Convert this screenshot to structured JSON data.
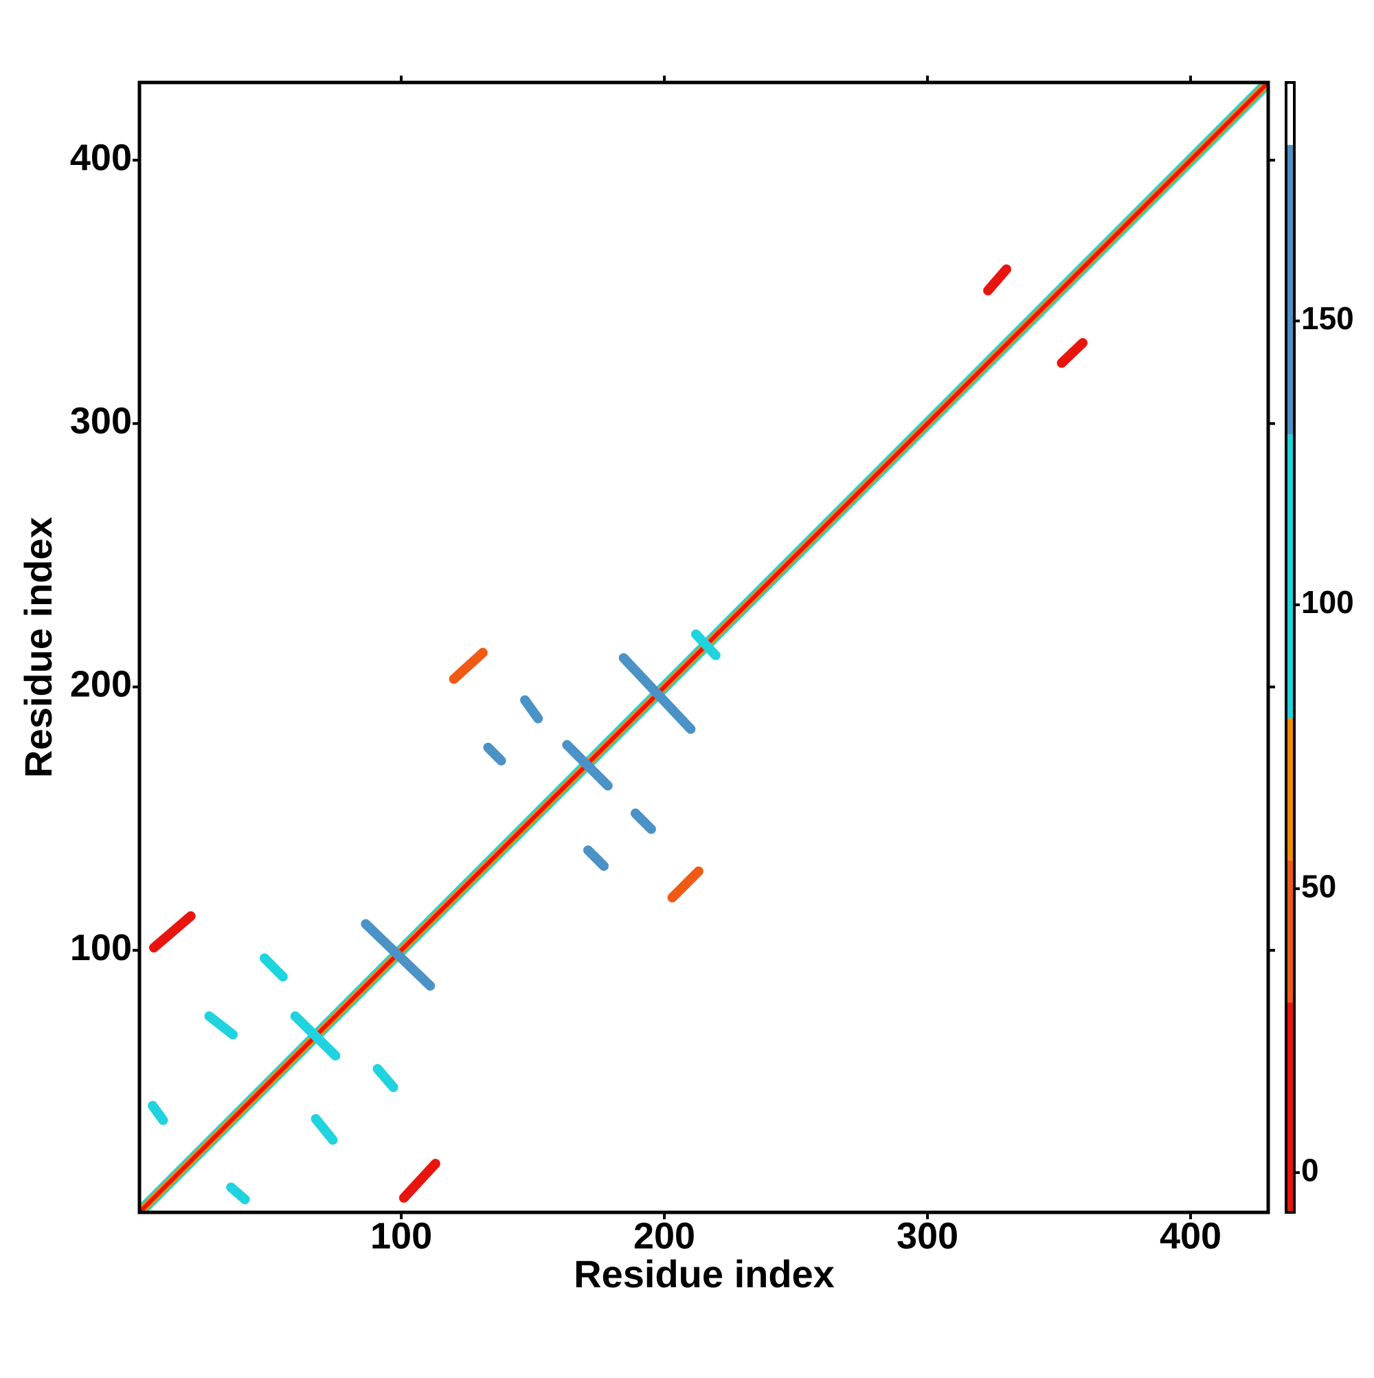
{
  "chart_data": {
    "type": "contact_map",
    "x_label": "Residue index",
    "y_label": "Residue index",
    "xlim": [
      0.5,
      429.5
    ],
    "ylim": [
      0.5,
      429.5
    ],
    "xticks": [
      100,
      200,
      300,
      400
    ],
    "yticks": [
      100,
      200,
      300,
      400
    ],
    "clim": [
      -7,
      192
    ],
    "cticks": [
      0,
      50,
      100,
      150
    ],
    "color_scale": [
      {
        "min": -7,
        "max": 30,
        "color": "#e8150e"
      },
      {
        "min": 30,
        "max": 55,
        "color": "#f05a14"
      },
      {
        "min": 55,
        "max": 80,
        "color": "#f08c00"
      },
      {
        "min": 80,
        "max": 130,
        "color": "#1fd3df"
      },
      {
        "min": 130,
        "max": 181,
        "color": "#4b92c6"
      },
      {
        "min": 181,
        "max": 192,
        "color": "#ffffff"
      }
    ],
    "contacts": [
      {
        "x": [
          1,
          429
        ],
        "y": [
          3,
          431
        ],
        "value": 100
      },
      {
        "x": [
          3,
          431
        ],
        "y": [
          1,
          429
        ],
        "value": 100
      },
      {
        "x": [
          1,
          429
        ],
        "y": [
          2,
          430
        ],
        "value": 60
      },
      {
        "x": [
          2,
          430
        ],
        "y": [
          1,
          429
        ],
        "value": 60
      },
      {
        "x": [
          1,
          429
        ],
        "y": [
          1,
          429
        ],
        "value": 0
      },
      {
        "x": [
          86.5,
          111
        ],
        "y": [
          110,
          86.5
        ],
        "value": 140
      },
      {
        "x": [
          184.5,
          210
        ],
        "y": [
          211,
          184
        ],
        "value": 140
      },
      {
        "x": [
          163,
          178.5
        ],
        "y": [
          178,
          162.5
        ],
        "value": 140
      },
      {
        "x": [
          59.7,
          75
        ],
        "y": [
          75,
          60
        ],
        "value": 110
      },
      {
        "x": [
          212,
          219.5
        ],
        "y": [
          220,
          212
        ],
        "value": 110
      },
      {
        "x": [
          6,
          20
        ],
        "y": [
          101,
          113
        ],
        "value": 20
      },
      {
        "x": [
          101,
          113
        ],
        "y": [
          6,
          19
        ],
        "value": 10
      },
      {
        "x": [
          120,
          131
        ],
        "y": [
          203,
          213
        ],
        "value": 40
      },
      {
        "x": [
          203,
          213
        ],
        "y": [
          120,
          130
        ],
        "value": 40
      },
      {
        "x": [
          323,
          330
        ],
        "y": [
          350.5,
          358.6
        ],
        "value": 5
      },
      {
        "x": [
          351,
          359
        ],
        "y": [
          323,
          330.6
        ],
        "value": 5
      },
      {
        "x": [
          147,
          152
        ],
        "y": [
          195,
          188
        ],
        "value": 140
      },
      {
        "x": [
          189,
          195
        ],
        "y": [
          152,
          146
        ],
        "value": 140
      },
      {
        "x": [
          133,
          138
        ],
        "y": [
          177,
          172
        ],
        "value": 140
      },
      {
        "x": [
          171,
          177
        ],
        "y": [
          138,
          132
        ],
        "value": 140
      },
      {
        "x": [
          48,
          55
        ],
        "y": [
          97,
          90
        ],
        "value": 120
      },
      {
        "x": [
          91,
          97
        ],
        "y": [
          55,
          48
        ],
        "value": 120
      },
      {
        "x": [
          27,
          36
        ],
        "y": [
          75,
          68
        ],
        "value": 120
      },
      {
        "x": [
          67.5,
          74
        ],
        "y": [
          36,
          28
        ],
        "value": 120
      },
      {
        "x": [
          5.5,
          9.5
        ],
        "y": [
          41,
          35.5
        ],
        "value": 120
      },
      {
        "x": [
          35.3,
          40.6
        ],
        "y": [
          10,
          5.4
        ],
        "value": 120
      }
    ]
  }
}
